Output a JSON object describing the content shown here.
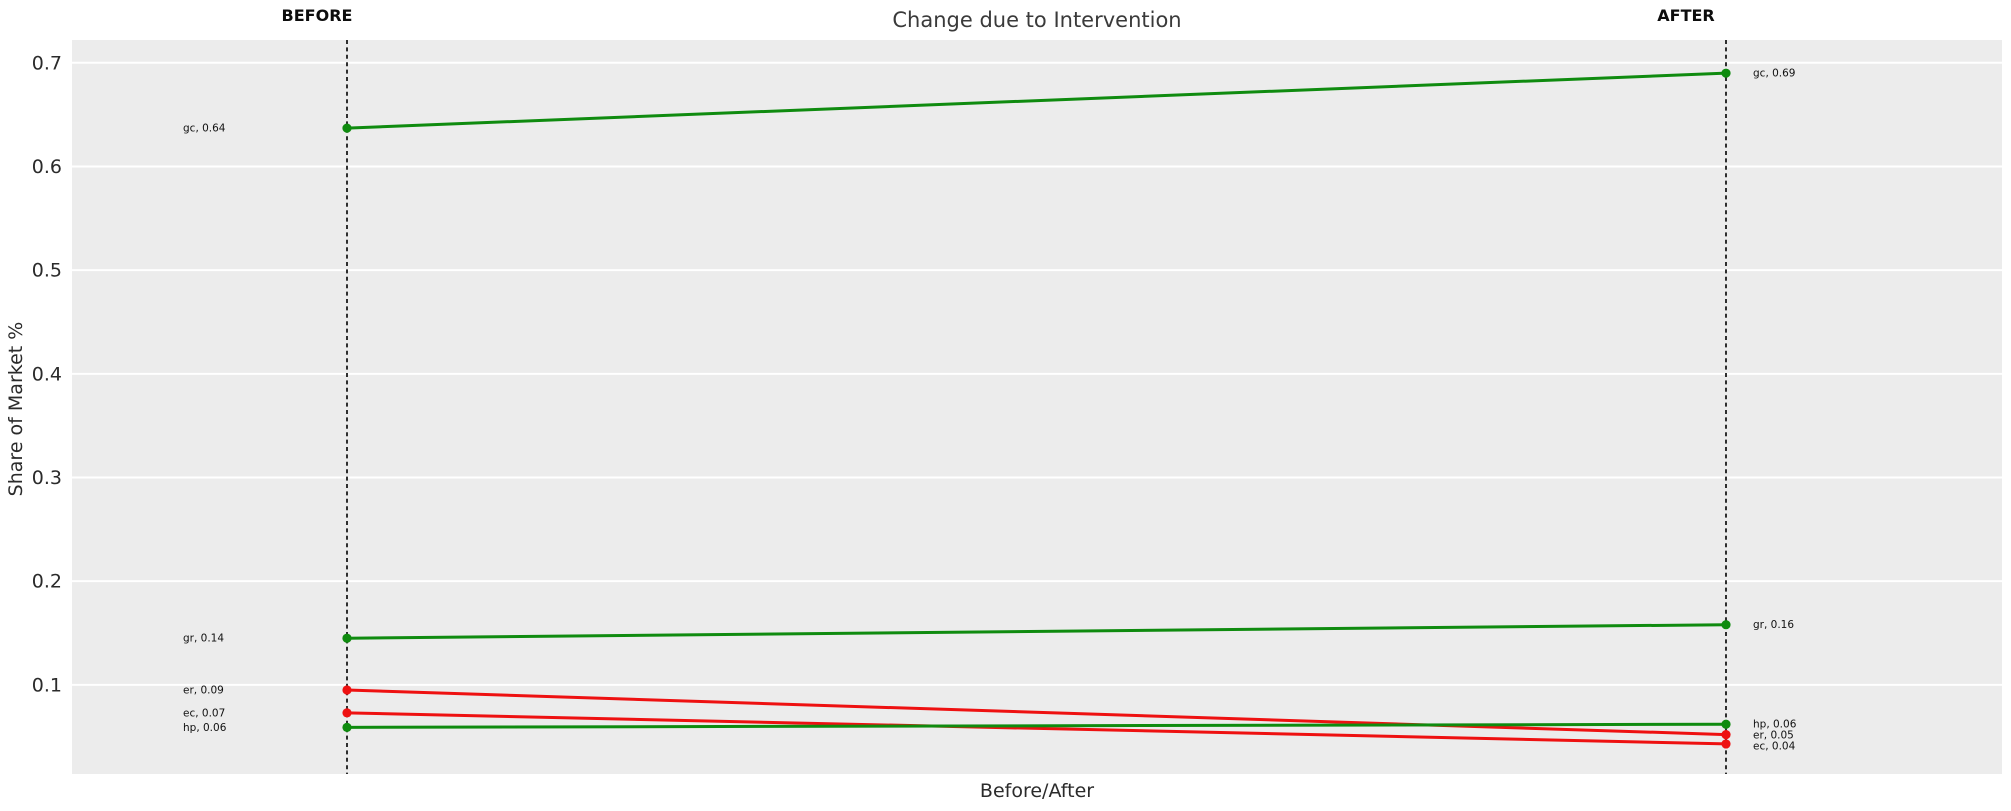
{
  "chart_data": {
    "type": "line",
    "variant": "slope-chart",
    "title": "Change due to Intervention",
    "xlabel": "Before/After",
    "ylabel": "Share of Market %",
    "x_categories": [
      "BEFORE",
      "AFTER"
    ],
    "yticks": [
      "0.1",
      "0.2",
      "0.3",
      "0.4",
      "0.5",
      "0.6",
      "0.7"
    ],
    "ylim": [
      0.014,
      0.722
    ],
    "grid": true,
    "legend": "none",
    "colors": {
      "plot_background": "#ececec",
      "gridline": "#ffffff",
      "guideline": "#1a1a1a",
      "increase_green": "#0f8b0f",
      "decrease_red": "#ee1111",
      "title_text": "#3a3a3a",
      "tick_text": "#2b2b2b",
      "column_label_text": "#0d0d0d",
      "point_label_text": "#111111"
    },
    "series": [
      {
        "name": "gc",
        "direction": "up",
        "color": "#0f8b0f",
        "before": 0.637,
        "after": 0.69,
        "label_before": "gc, 0.64",
        "label_after": "gc, 0.69"
      },
      {
        "name": "gr",
        "direction": "up",
        "color": "#0f8b0f",
        "before": 0.145,
        "after": 0.158,
        "label_before": "gr, 0.14",
        "label_after": "gr, 0.16"
      },
      {
        "name": "er",
        "direction": "down",
        "color": "#ee1111",
        "before": 0.095,
        "after": 0.052,
        "label_before": "er, 0.09",
        "label_after": "er, 0.05"
      },
      {
        "name": "ec",
        "direction": "down",
        "color": "#ee1111",
        "before": 0.073,
        "after": 0.043,
        "label_before": "ec, 0.07",
        "label_after": "ec, 0.04"
      },
      {
        "name": "hp",
        "direction": "up",
        "color": "#0f8b0f",
        "before": 0.059,
        "after": 0.062,
        "label_before": "hp, 0.06",
        "label_after": "hp, 0.06"
      }
    ]
  }
}
